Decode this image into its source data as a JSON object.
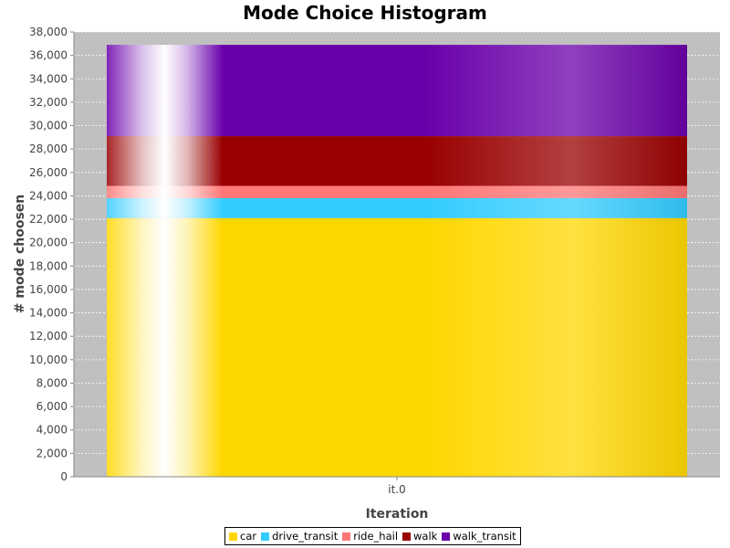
{
  "chart_data": {
    "type": "bar",
    "stacked": true,
    "title": "Mode Choice Histogram",
    "xlabel": "Iteration",
    "ylabel": "# mode choosen",
    "categories": [
      "it.0"
    ],
    "ylim": [
      0,
      38000
    ],
    "yticks": [
      0,
      2000,
      4000,
      6000,
      8000,
      10000,
      12000,
      14000,
      16000,
      18000,
      20000,
      22000,
      24000,
      26000,
      28000,
      30000,
      32000,
      34000,
      36000,
      38000
    ],
    "ytick_labels": [
      "0",
      "2,000",
      "4,000",
      "6,000",
      "8,000",
      "10,000",
      "12,000",
      "14,000",
      "16,000",
      "18,000",
      "20,000",
      "22,000",
      "24,000",
      "26,000",
      "28,000",
      "30,000",
      "32,000",
      "34,000",
      "36,000",
      "38,000"
    ],
    "grid": true,
    "legend_position": "bottom",
    "series": [
      {
        "name": "car",
        "values": [
          22100
        ],
        "color": "#FFD700"
      },
      {
        "name": "drive_transit",
        "values": [
          1700
        ],
        "color": "#33CCFF"
      },
      {
        "name": "ride_hail",
        "values": [
          1050
        ],
        "color": "#FF7777"
      },
      {
        "name": "walk",
        "values": [
          4250
        ],
        "color": "#990000"
      },
      {
        "name": "walk_transit",
        "values": [
          7800
        ],
        "color": "#6A00AA"
      }
    ]
  }
}
